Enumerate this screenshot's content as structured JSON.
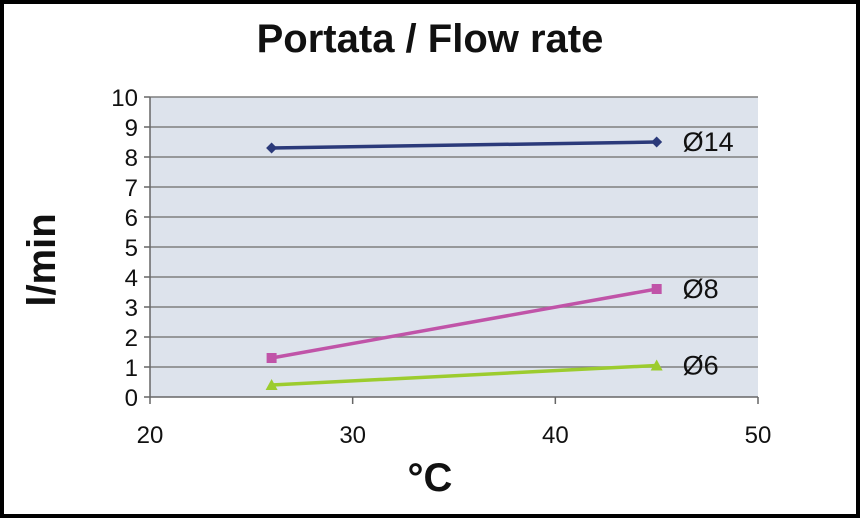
{
  "chart_data": {
    "type": "line",
    "title": "Portata / Flow rate",
    "xlabel": "°C",
    "ylabel": "l/min",
    "xlim": [
      20,
      50
    ],
    "ylim": [
      0,
      10
    ],
    "x_ticks": [
      "20",
      "30",
      "40",
      "50"
    ],
    "y_ticks": [
      "0",
      "1",
      "2",
      "3",
      "4",
      "5",
      "6",
      "7",
      "8",
      "9",
      "10"
    ],
    "grid": true,
    "legend": "none",
    "series": [
      {
        "name": "Ø14",
        "x": [
          26,
          45
        ],
        "y": [
          8.3,
          8.5
        ],
        "color": "#2b3a7a",
        "marker": "diamond"
      },
      {
        "name": "Ø8",
        "x": [
          26,
          45
        ],
        "y": [
          1.3,
          3.6
        ],
        "color": "#c054a8",
        "marker": "square"
      },
      {
        "name": "Ø6",
        "x": [
          26,
          45
        ],
        "y": [
          0.4,
          1.05
        ],
        "color": "#9ccc2e",
        "marker": "triangle"
      }
    ],
    "plot_background": "#dde3ec",
    "gridline_color": "#7f7f7f"
  }
}
